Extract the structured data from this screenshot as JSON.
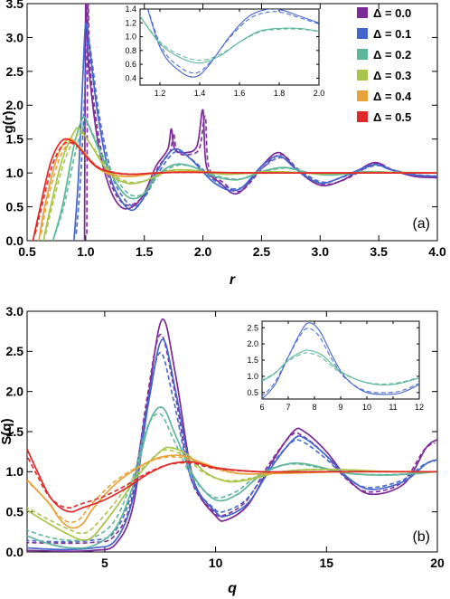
{
  "colors": {
    "0.0": "#7b2a97",
    "0.1": "#4466cc",
    "0.2": "#5db59a",
    "0.3": "#a9c44a",
    "0.4": "#e8a23a",
    "0.5": "#e02828"
  },
  "legend": {
    "items": [
      "Δ = 0.0",
      "Δ = 0.1",
      "Δ = 0.2",
      "Δ = 0.3",
      "Δ = 0.4",
      "Δ = 0.5"
    ]
  },
  "chart_data": [
    {
      "type": "line",
      "panel_label": "(a)",
      "xlabel": "r",
      "ylabel": "g(r)",
      "xlim": [
        0.5,
        4.0
      ],
      "ylim": [
        0.0,
        3.5
      ],
      "xticks": [
        "0.5",
        "1.0",
        "1.5",
        "2.0",
        "2.5",
        "3.0",
        "3.5",
        "4.0"
      ],
      "yticks": [
        "0.0",
        "0.5",
        "1.0",
        "1.5",
        "2.0",
        "2.5",
        "3.0",
        "3.5"
      ],
      "legend_position": "top-right",
      "line_styles": "solid and dashed curves for each Δ",
      "series": [
        {
          "name": "Δ = 0.0",
          "x": [
            0.99,
            1.0,
            1.02,
            1.1,
            1.2,
            1.3,
            1.4,
            1.5,
            1.6,
            1.7,
            1.73,
            1.76,
            1.85,
            1.95,
            2.0,
            2.03,
            2.15,
            2.3,
            2.5,
            2.65,
            2.8,
            3.0,
            3.2,
            3.45,
            3.6,
            3.8,
            4.0
          ],
          "y": [
            0.0,
            3.7,
            2.7,
            1.5,
            0.8,
            0.5,
            0.5,
            0.7,
            1.1,
            1.35,
            1.65,
            1.35,
            1.3,
            1.4,
            1.93,
            1.1,
            0.85,
            0.7,
            1.1,
            1.3,
            1.05,
            0.82,
            0.9,
            1.15,
            1.05,
            0.95,
            0.93
          ]
        },
        {
          "name": "Δ = 0.1",
          "x": [
            0.9,
            0.94,
            0.98,
            1.0,
            1.03,
            1.1,
            1.2,
            1.3,
            1.4,
            1.5,
            1.6,
            1.75,
            1.9,
            2.1,
            2.3,
            2.5,
            2.65,
            2.8,
            3.0,
            3.2,
            3.45,
            3.6,
            3.8,
            4.0
          ],
          "y": [
            0.0,
            1.0,
            2.6,
            3.2,
            2.9,
            1.9,
            1.0,
            0.6,
            0.45,
            0.65,
            1.0,
            1.35,
            1.2,
            0.85,
            0.75,
            1.1,
            1.25,
            1.05,
            0.85,
            0.95,
            1.12,
            1.05,
            0.97,
            0.95
          ]
        },
        {
          "name": "Δ = 0.2",
          "x": [
            0.72,
            0.8,
            0.9,
            0.97,
            1.0,
            1.05,
            1.15,
            1.3,
            1.4,
            1.5,
            1.6,
            1.75,
            1.9,
            2.1,
            2.3,
            2.5,
            2.7,
            2.9,
            3.1,
            3.4,
            3.7,
            4.0
          ],
          "y": [
            0.0,
            0.5,
            1.4,
            1.8,
            1.8,
            1.6,
            1.2,
            0.75,
            0.62,
            0.7,
            0.95,
            1.12,
            1.1,
            0.95,
            0.9,
            1.02,
            1.08,
            1.0,
            0.97,
            1.02,
            1.0,
            1.0
          ]
        },
        {
          "name": "Δ = 0.3",
          "x": [
            0.64,
            0.7,
            0.8,
            0.9,
            0.95,
            1.05,
            1.2,
            1.35,
            1.5,
            1.7,
            1.9,
            2.2,
            2.6,
            3.0,
            3.5,
            4.0
          ],
          "y": [
            0.0,
            0.5,
            1.2,
            1.6,
            1.65,
            1.4,
            1.0,
            0.85,
            0.88,
            1.03,
            1.04,
            0.98,
            1.02,
            0.99,
            1.01,
            1.0
          ]
        },
        {
          "name": "Δ = 0.4",
          "x": [
            0.6,
            0.65,
            0.75,
            0.85,
            0.95,
            1.05,
            1.2,
            1.4,
            1.6,
            1.9,
            2.3,
            2.8,
            3.3,
            4.0
          ],
          "y": [
            0.0,
            0.5,
            1.2,
            1.5,
            1.38,
            1.15,
            0.98,
            0.95,
            1.0,
            1.02,
            1.0,
            1.0,
            1.0,
            1.0
          ]
        },
        {
          "name": "Δ = 0.5",
          "x": [
            0.55,
            0.6,
            0.7,
            0.8,
            0.9,
            1.0,
            1.1,
            1.25,
            1.4,
            1.6,
            1.9,
            2.5,
            3.0,
            4.0
          ],
          "y": [
            0.0,
            0.4,
            1.15,
            1.48,
            1.45,
            1.25,
            1.08,
            1.0,
            0.98,
            1.0,
            1.01,
            1.0,
            1.0,
            1.0
          ]
        }
      ],
      "inset": {
        "xlim": [
          1.1,
          2.0
        ],
        "ylim": [
          0.3,
          1.4
        ],
        "xticks": [
          "1.2",
          "1.4",
          "1.6",
          "1.8",
          "2.0"
        ],
        "yticks": [
          "0.4",
          "0.6",
          "0.8",
          "1.0",
          "1.2",
          "1.4"
        ],
        "series": [
          {
            "name": "Δ = 0.1",
            "x": [
              1.1,
              1.2,
              1.3,
              1.38,
              1.45,
              1.55,
              1.65,
              1.75,
              1.82,
              1.9,
              2.0
            ],
            "y": [
              1.8,
              0.85,
              0.5,
              0.42,
              0.6,
              1.0,
              1.3,
              1.4,
              1.38,
              1.3,
              1.2
            ]
          },
          {
            "name": "Δ = 0.2",
            "x": [
              1.1,
              1.2,
              1.3,
              1.4,
              1.5,
              1.6,
              1.7,
              1.8,
              1.9,
              2.0
            ],
            "y": [
              1.3,
              0.9,
              0.7,
              0.62,
              0.72,
              0.92,
              1.08,
              1.12,
              1.12,
              1.08
            ]
          }
        ]
      }
    },
    {
      "type": "line",
      "panel_label": "(b)",
      "xlabel": "q",
      "ylabel": "S(q)",
      "xlim": [
        1.5,
        20
      ],
      "ylim": [
        0.0,
        3.0
      ],
      "xticks": [
        "5",
        "10",
        "15",
        "20"
      ],
      "yticks": [
        "0.0",
        "0.5",
        "1.0",
        "1.5",
        "2.0",
        "2.5",
        "3.0"
      ],
      "line_styles": "solid and dashed curves for each Δ",
      "series": [
        {
          "name": "Δ = 0.0",
          "x": [
            1.5,
            3,
            4.5,
            5.5,
            6.3,
            7.0,
            7.6,
            8.2,
            9.0,
            10.0,
            10.5,
            11.5,
            12.5,
            13.5,
            14.0,
            15.0,
            16.0,
            17.0,
            18.5,
            19.5,
            20.0
          ],
          "y": [
            0.02,
            0.01,
            0.02,
            0.1,
            0.6,
            2.0,
            2.9,
            2.2,
            0.9,
            0.45,
            0.4,
            0.6,
            1.1,
            1.5,
            1.5,
            1.25,
            0.9,
            0.72,
            0.85,
            1.3,
            1.4
          ]
        },
        {
          "name": "Δ = 0.1",
          "x": [
            1.5,
            3,
            4.5,
            5.5,
            6.3,
            7.0,
            7.6,
            8.2,
            9.0,
            10.0,
            10.5,
            11.5,
            12.5,
            13.5,
            14.0,
            15.0,
            16.0,
            17.0,
            18.5,
            19.5,
            20.0
          ],
          "y": [
            0.05,
            0.03,
            0.05,
            0.15,
            0.7,
            1.9,
            2.65,
            2.0,
            0.9,
            0.5,
            0.45,
            0.62,
            1.05,
            1.4,
            1.42,
            1.2,
            0.92,
            0.78,
            0.88,
            1.1,
            1.15
          ]
        },
        {
          "name": "Δ = 0.2",
          "x": [
            1.5,
            2.5,
            3.5,
            4.5,
            5.5,
            6.3,
            7.0,
            7.6,
            8.2,
            9.0,
            10.0,
            11.0,
            12.0,
            13.0,
            14.0,
            16.0,
            18.0,
            20.0
          ],
          "y": [
            0.2,
            0.1,
            0.05,
            0.08,
            0.3,
            0.85,
            1.6,
            1.8,
            1.45,
            0.95,
            0.65,
            0.72,
            0.95,
            1.08,
            1.1,
            0.98,
            0.96,
            1.0
          ]
        },
        {
          "name": "Δ = 0.3",
          "x": [
            1.5,
            2.5,
            3.5,
            4.0,
            4.5,
            5.5,
            6.5,
            7.5,
            8.0,
            8.8,
            9.5,
            10.5,
            11.5,
            13.0,
            15.0,
            18.0,
            20.0
          ],
          "y": [
            0.52,
            0.35,
            0.2,
            0.15,
            0.2,
            0.55,
            0.95,
            1.25,
            1.3,
            1.2,
            1.0,
            0.88,
            0.9,
            1.0,
            1.03,
            1.0,
            1.0
          ]
        },
        {
          "name": "Δ = 0.4",
          "x": [
            1.5,
            2.5,
            3.0,
            3.5,
            4.0,
            4.5,
            5.5,
            6.5,
            7.5,
            8.5,
            9.5,
            11.0,
            13.0,
            16.0,
            20.0
          ],
          "y": [
            0.9,
            0.6,
            0.4,
            0.3,
            0.35,
            0.55,
            0.85,
            1.05,
            1.18,
            1.2,
            1.1,
            0.98,
            0.98,
            1.0,
            1.0
          ]
        },
        {
          "name": "Δ = 0.5",
          "x": [
            1.5,
            2.0,
            2.5,
            3.0,
            3.5,
            4.0,
            5.0,
            6.0,
            7.0,
            8.0,
            9.0,
            10.0,
            12.0,
            15.0,
            20.0
          ],
          "y": [
            1.28,
            0.98,
            0.7,
            0.55,
            0.5,
            0.55,
            0.65,
            0.8,
            0.98,
            1.1,
            1.12,
            1.05,
            1.0,
            1.0,
            1.0
          ]
        }
      ],
      "inset": {
        "xlim": [
          6,
          12
        ],
        "ylim": [
          0.3,
          2.7
        ],
        "xticks": [
          "6",
          "7",
          "8",
          "9",
          "10",
          "11",
          "12"
        ],
        "yticks": [
          "0.5",
          "1.0",
          "1.5",
          "2.0",
          "2.5"
        ],
        "series": [
          {
            "name": "Δ = 0.1",
            "x": [
              6,
              6.5,
              7.0,
              7.5,
              7.8,
              8.2,
              8.7,
              9.2,
              10.0,
              11.0,
              11.5,
              12.0
            ],
            "y": [
              0.3,
              0.75,
              1.6,
              2.4,
              2.65,
              2.4,
              1.6,
              0.95,
              0.5,
              0.45,
              0.55,
              0.75
            ]
          },
          {
            "name": "Δ = 0.2",
            "x": [
              6,
              6.5,
              7.0,
              7.5,
              7.8,
              8.3,
              9.0,
              10.0,
              11.0,
              12.0
            ],
            "y": [
              0.85,
              1.1,
              1.5,
              1.75,
              1.8,
              1.65,
              1.15,
              0.8,
              0.75,
              0.95
            ]
          }
        ]
      }
    }
  ]
}
